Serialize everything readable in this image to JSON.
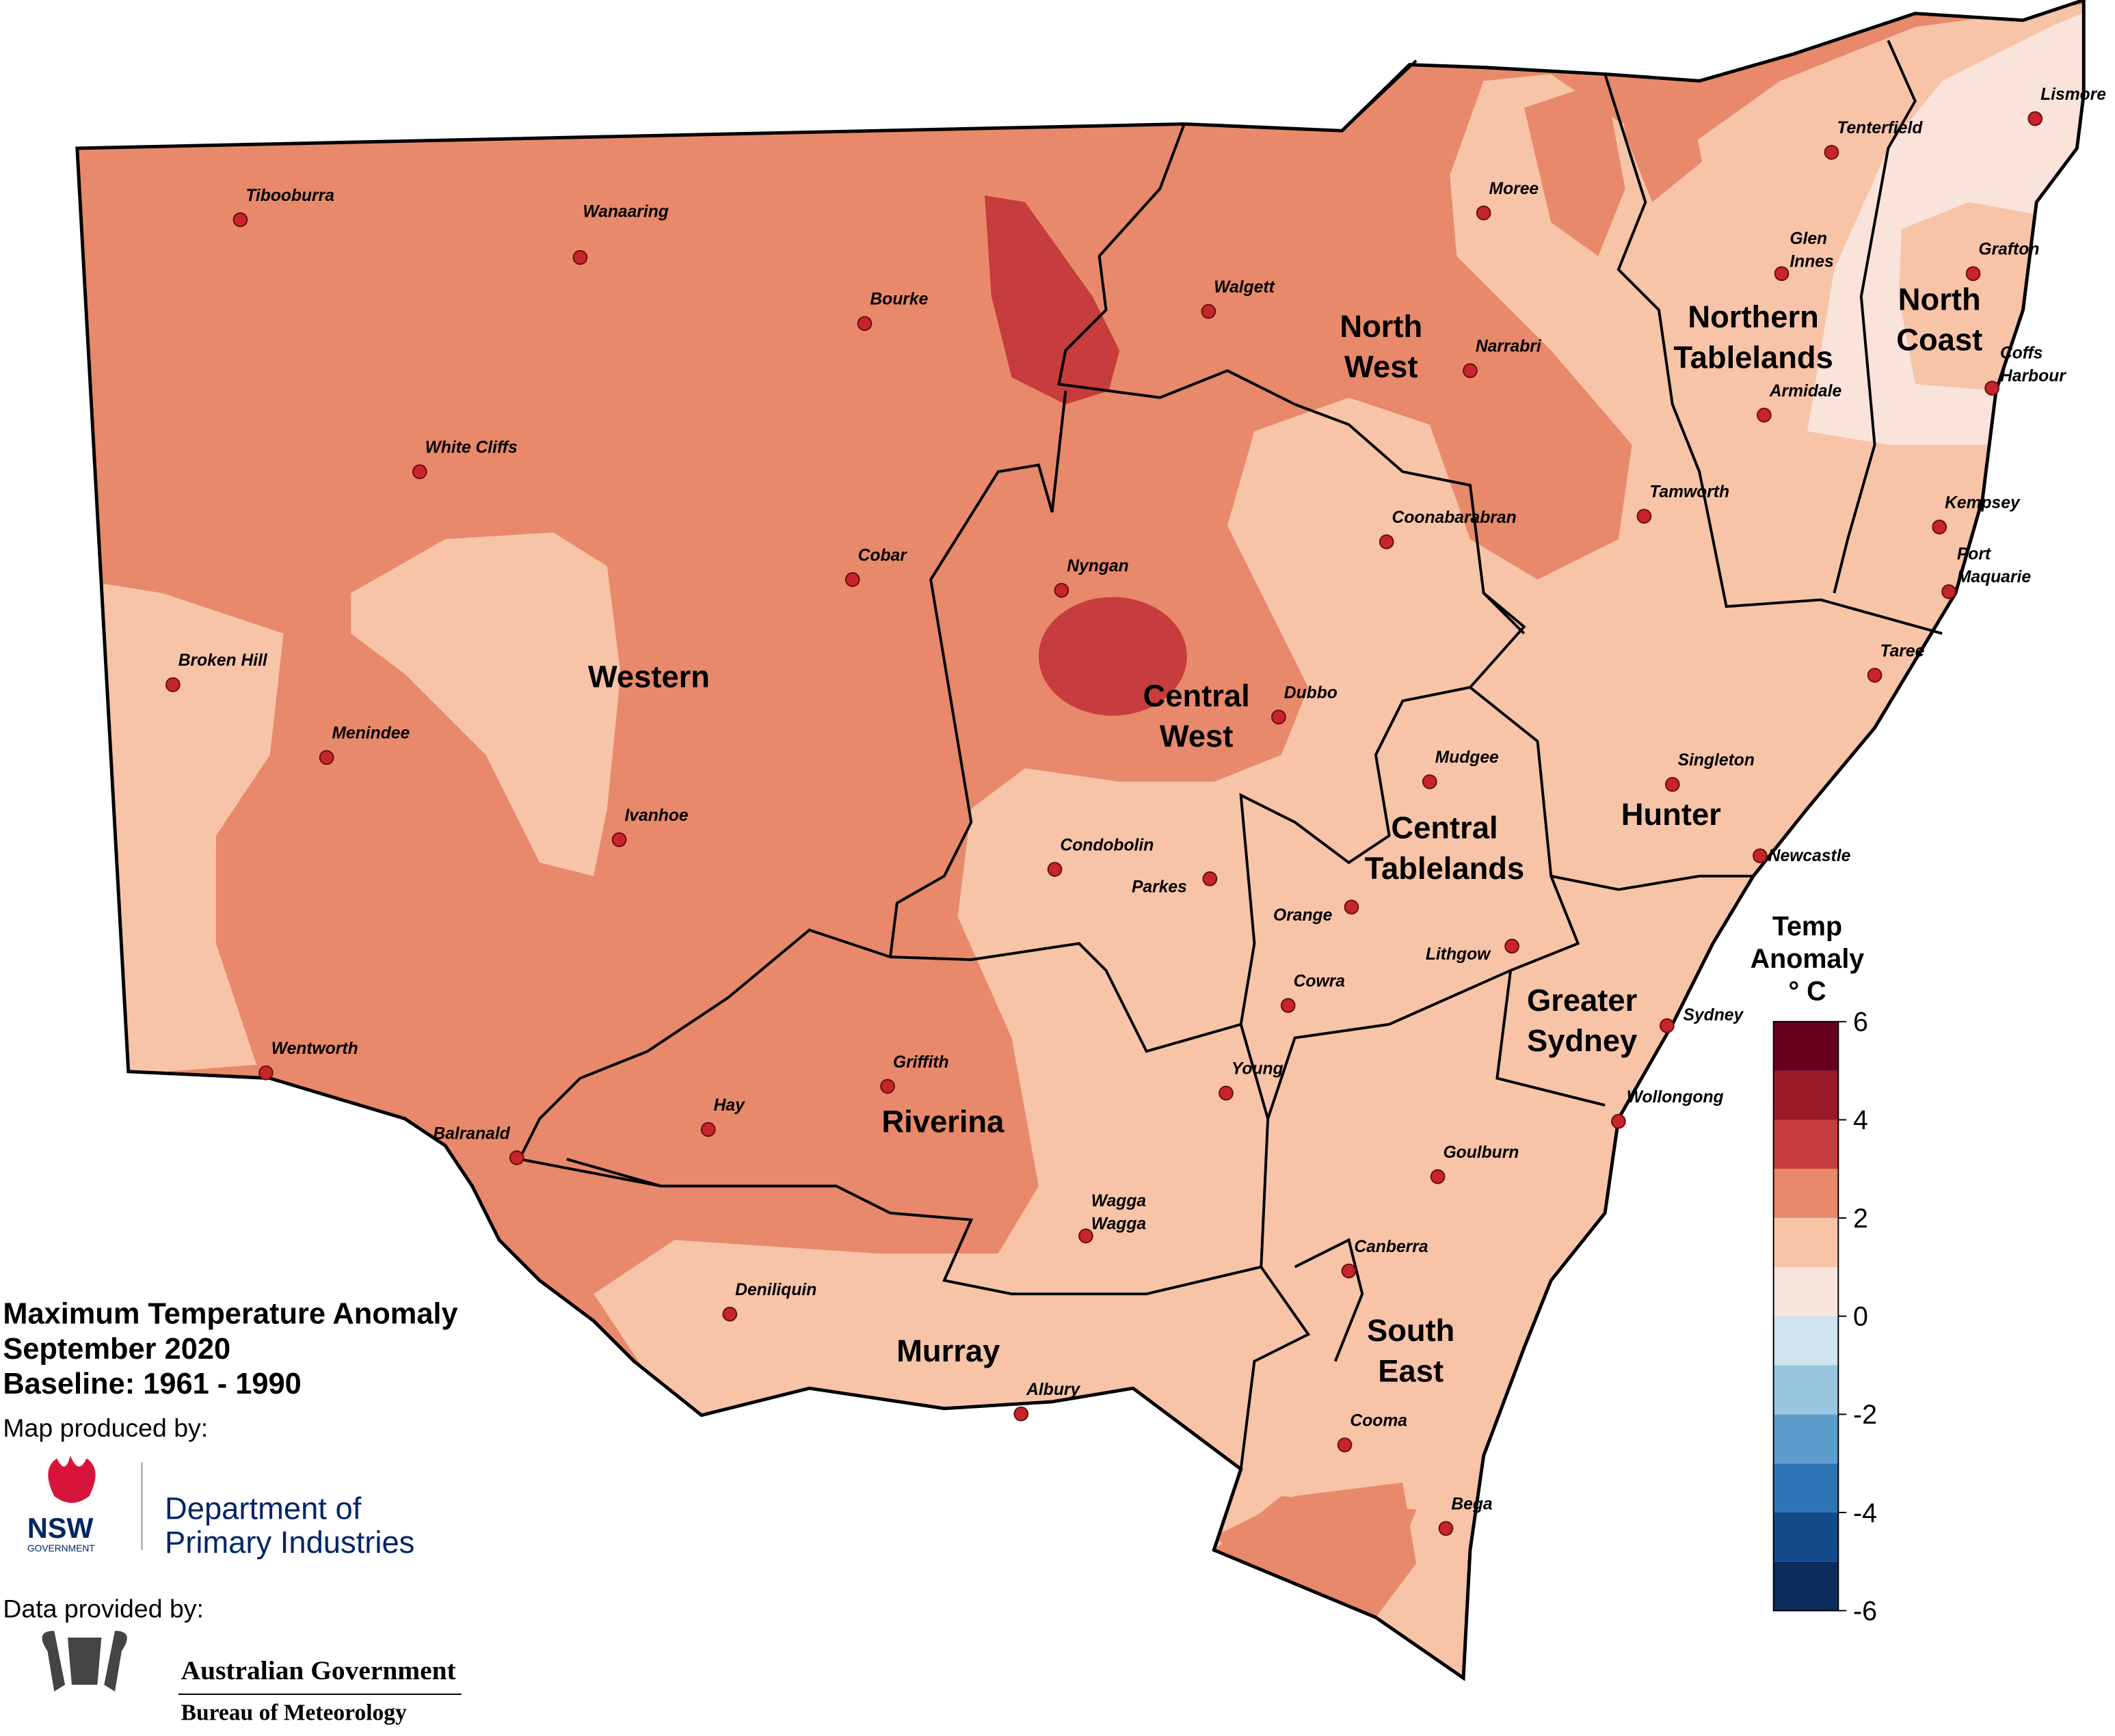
{
  "title": [
    "Maximum Temperature Anomaly",
    "September 2020",
    "Baseline: 1961 - 1990"
  ],
  "credits": {
    "produced_by": "Map produced by:",
    "nsw": "NSW",
    "nsw_sub": "GOVERNMENT",
    "department": [
      "Department of",
      "Primary Industries"
    ],
    "data_by": "Data provided by:",
    "agency": [
      "Australian Government",
      "Bureau of Meteorology"
    ]
  },
  "regions": [
    {
      "name": [
        "Western"
      ]
    },
    {
      "name": [
        "North",
        "West"
      ]
    },
    {
      "name": [
        "Northern",
        "Tablelands"
      ]
    },
    {
      "name": [
        "North",
        "Coast"
      ]
    },
    {
      "name": [
        "Central",
        "West"
      ]
    },
    {
      "name": [
        "Central",
        "Tablelands"
      ]
    },
    {
      "name": [
        "Hunter"
      ]
    },
    {
      "name": [
        "Greater",
        "Sydney"
      ]
    },
    {
      "name": [
        "Riverina"
      ]
    },
    {
      "name": [
        "Murray"
      ]
    },
    {
      "name": [
        "South",
        "East"
      ]
    }
  ],
  "towns": [
    {
      "name": [
        "Tibooburra"
      ]
    },
    {
      "name": [
        "Wanaaring"
      ]
    },
    {
      "name": [
        "Bourke"
      ]
    },
    {
      "name": [
        "White Cliffs"
      ]
    },
    {
      "name": [
        "Cobar"
      ]
    },
    {
      "name": [
        "Broken Hill"
      ]
    },
    {
      "name": [
        "Menindee"
      ]
    },
    {
      "name": [
        "Ivanhoe"
      ]
    },
    {
      "name": [
        "Wentworth"
      ]
    },
    {
      "name": [
        "Balranald"
      ]
    },
    {
      "name": [
        "Hay"
      ]
    },
    {
      "name": [
        "Griffith"
      ]
    },
    {
      "name": [
        "Deniliquin"
      ]
    },
    {
      "name": [
        "Albury"
      ]
    },
    {
      "name": [
        "Wagga",
        "Wagga"
      ]
    },
    {
      "name": [
        "Young"
      ]
    },
    {
      "name": [
        "Condobolin"
      ]
    },
    {
      "name": [
        "Parkes"
      ]
    },
    {
      "name": [
        "Orange"
      ]
    },
    {
      "name": [
        "Cowra"
      ]
    },
    {
      "name": [
        "Lithgow"
      ]
    },
    {
      "name": [
        "Mudgee"
      ]
    },
    {
      "name": [
        "Dubbo"
      ]
    },
    {
      "name": [
        "Nyngan"
      ]
    },
    {
      "name": [
        "Walgett"
      ]
    },
    {
      "name": [
        "Moree"
      ]
    },
    {
      "name": [
        "Narrabri"
      ]
    },
    {
      "name": [
        "Coonabarabran"
      ]
    },
    {
      "name": [
        "Tamworth"
      ]
    },
    {
      "name": [
        "Tenterfield"
      ]
    },
    {
      "name": [
        "Lismore"
      ]
    },
    {
      "name": [
        "Glen",
        "Innes"
      ]
    },
    {
      "name": [
        "Grafton"
      ]
    },
    {
      "name": [
        "Armidale"
      ]
    },
    {
      "name": [
        "Coffs",
        "Harbour"
      ]
    },
    {
      "name": [
        "Kempsey"
      ]
    },
    {
      "name": [
        "Port",
        "Maquarie"
      ]
    },
    {
      "name": [
        "Taree"
      ]
    },
    {
      "name": [
        "Singleton"
      ]
    },
    {
      "name": [
        "Newcastle"
      ]
    },
    {
      "name": [
        "Sydney"
      ]
    },
    {
      "name": [
        "Wollongong"
      ]
    },
    {
      "name": [
        "Goulburn"
      ]
    },
    {
      "name": [
        "Canberra"
      ]
    },
    {
      "name": [
        "Cooma"
      ]
    },
    {
      "name": [
        "Bega"
      ]
    }
  ],
  "legend": {
    "title": [
      "Temp",
      "Anomaly",
      "° C"
    ],
    "lim": [
      -6,
      6
    ],
    "ticks": [
      -6,
      -4,
      -2,
      0,
      2,
      4,
      6
    ],
    "colors": [
      "#0b2d5c",
      "#134a8a",
      "#2f74b5",
      "#5d9dcc",
      "#9ac6e0",
      "#d0e4ef",
      "#f7e4dc",
      "#f7c4a8",
      "#e8896b",
      "#c73c3c",
      "#9b1a2a",
      "#67001f"
    ]
  }
}
